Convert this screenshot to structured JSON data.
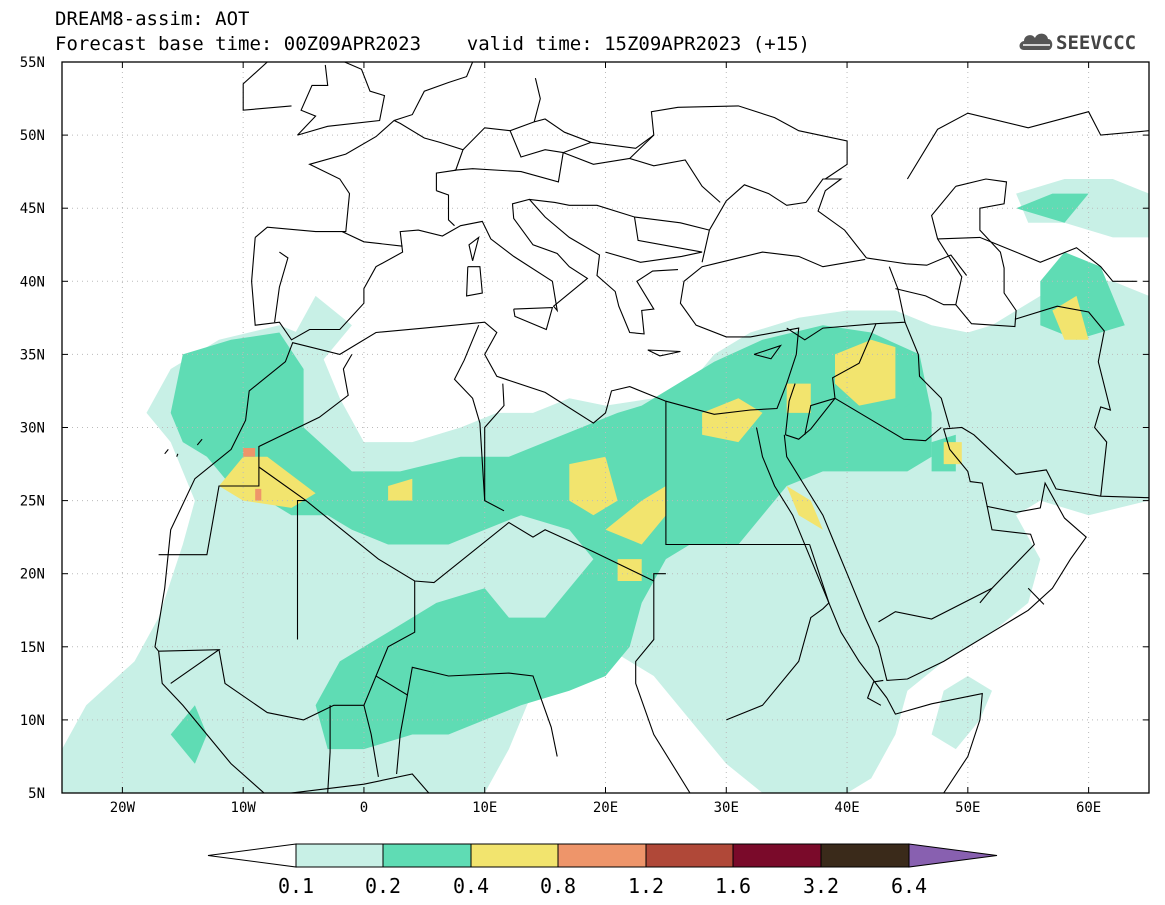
{
  "header": {
    "title_line1": "DREAM8-assim: AOT",
    "title_line2": "Forecast base time: 00Z09APR2023    valid time: 15Z09APR2023 (+15)",
    "logo_text": "SEEVCCC"
  },
  "map": {
    "lon_range": [
      -25,
      65
    ],
    "lat_range": [
      5,
      55
    ],
    "lat_labels": [
      "55N",
      "50N",
      "45N",
      "40N",
      "35N",
      "30N",
      "25N",
      "20N",
      "15N",
      "10N",
      "5N"
    ],
    "lat_values": [
      55,
      50,
      45,
      40,
      35,
      30,
      25,
      20,
      15,
      10,
      5
    ],
    "lon_labels": [
      "20W",
      "10W",
      "0",
      "10E",
      "20E",
      "30E",
      "40E",
      "50E",
      "60E"
    ],
    "lon_values": [
      -20,
      -10,
      0,
      10,
      20,
      30,
      40,
      50,
      60
    ],
    "grid": "dotted",
    "colors": {
      "c1": "#c8f0e6",
      "c2": "#5fdcb4",
      "c3": "#f2e46e",
      "c4": "#ee956a",
      "c5": "#b04838"
    }
  },
  "colorbar": {
    "labels": [
      "0.1",
      "0.2",
      "0.4",
      "0.8",
      "1.2",
      "1.6",
      "3.2",
      "6.4"
    ],
    "left_arrow_color": "#ffffff",
    "colors": [
      "#c8f0e6",
      "#5fdcb4",
      "#f2e46e",
      "#ee956a",
      "#b04838",
      "#7a0a2a",
      "#3a2a1a"
    ],
    "right_arrow_color": "#8860b0"
  }
}
